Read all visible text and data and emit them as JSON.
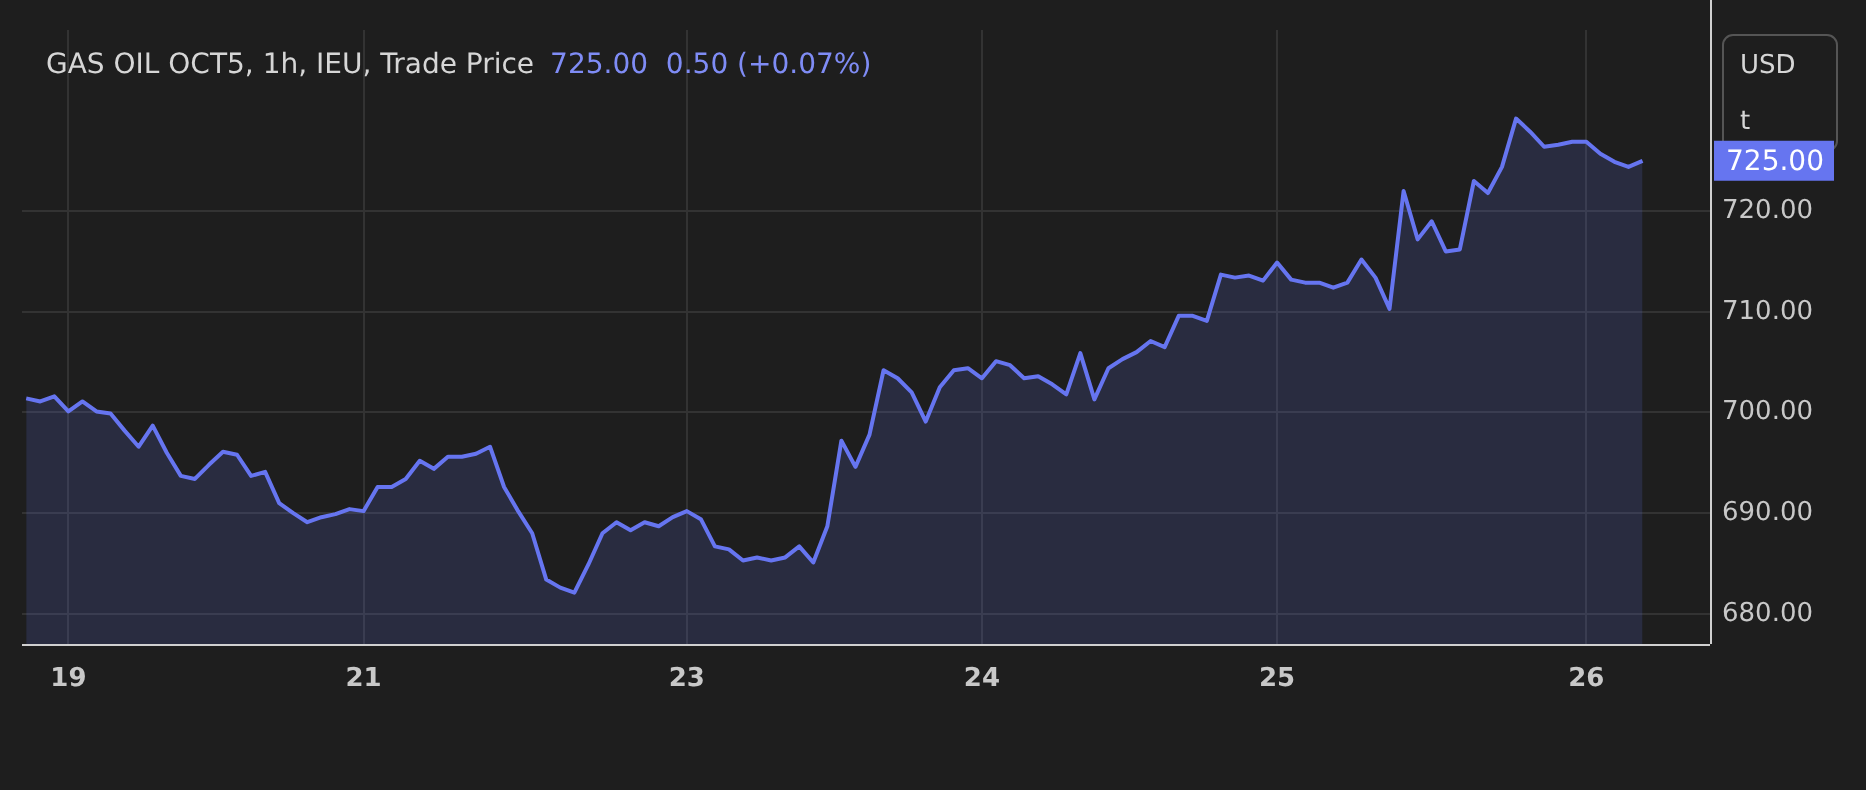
{
  "chart_data": {
    "type": "area",
    "title": "GAS OIL OCT5, 1h, IEU, Trade Price",
    "subtitle": "725.00  0.50 (+0.07%)",
    "annotations": [
      "USD",
      "t",
      "725.00"
    ],
    "categories": [
      null,
      null,
      null,
      "19",
      null,
      null,
      null,
      null,
      null,
      null,
      null,
      null,
      null,
      null,
      null,
      null,
      null,
      null,
      null,
      null,
      null,
      null,
      null,
      null,
      "21",
      null,
      null,
      null,
      null,
      null,
      null,
      null,
      null,
      null,
      null,
      null,
      null,
      null,
      null,
      null,
      null,
      null,
      null,
      null,
      null,
      null,
      null,
      "23",
      null,
      null,
      null,
      null,
      null,
      null,
      null,
      null,
      null,
      null,
      null,
      null,
      null,
      null,
      null,
      null,
      null,
      null,
      null,
      null,
      "24",
      null,
      null,
      null,
      null,
      null,
      null,
      null,
      null,
      null,
      null,
      null,
      null,
      null,
      null,
      null,
      null,
      null,
      null,
      null,
      null,
      "25",
      null,
      null,
      null,
      null,
      null,
      null,
      null,
      null,
      null,
      null,
      null,
      null,
      null,
      null,
      null,
      null,
      null,
      null,
      null,
      null,
      null,
      "26",
      null,
      null,
      null,
      null
    ],
    "series": [
      {
        "color": "#6675f0",
        "values": [
          701.4,
          701.1,
          701.6,
          700.1,
          701.1,
          700.1,
          699.9,
          698.2,
          696.6,
          698.7,
          696.0,
          693.7,
          693.4,
          694.8,
          696.1,
          695.8,
          693.7,
          694.1,
          691.0,
          690.0,
          689.1,
          689.6,
          689.9,
          690.4,
          690.2,
          692.6,
          692.6,
          693.4,
          695.2,
          694.4,
          695.6,
          695.6,
          695.9,
          696.6,
          692.6,
          690.2,
          688.0,
          683.4,
          682.6,
          682.1,
          684.9,
          688.0,
          689.1,
          688.3,
          689.1,
          688.7,
          689.6,
          690.2,
          689.4,
          686.7,
          686.4,
          685.3,
          685.6,
          685.3,
          685.6,
          686.7,
          685.1,
          688.7,
          697.2,
          694.6,
          697.8,
          704.2,
          703.4,
          702.0,
          699.1,
          702.5,
          704.2,
          704.4,
          703.4,
          705.1,
          704.7,
          703.4,
          703.6,
          702.8,
          701.8,
          705.9,
          701.3,
          704.4,
          705.3,
          706.0,
          707.1,
          706.5,
          709.6,
          709.6,
          709.1,
          713.7,
          713.4,
          713.6,
          713.1,
          714.9,
          713.2,
          712.9,
          712.9,
          712.4,
          712.9,
          715.2,
          713.4,
          710.3,
          722.0,
          717.2,
          719.0,
          716.0,
          716.2,
          723.0,
          721.8,
          724.4,
          729.2,
          727.9,
          726.4,
          726.6,
          726.9,
          726.9,
          725.7,
          724.9,
          724.4,
          725.0
        ]
      }
    ],
    "ylim": [
      677,
      738
    ],
    "yticks": [
      {
        "value": 680,
        "label": "680.00"
      },
      {
        "value": 690,
        "label": "690.00"
      },
      {
        "value": 700,
        "label": "700.00"
      },
      {
        "value": 710,
        "label": "710.00"
      },
      {
        "value": 720,
        "label": "720.00"
      }
    ],
    "grid": true
  }
}
